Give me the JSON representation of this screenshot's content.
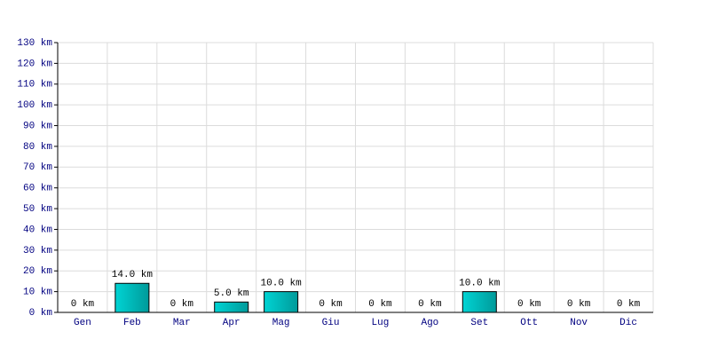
{
  "chart_data": {
    "type": "bar",
    "categories": [
      "Gen",
      "Feb",
      "Mar",
      "Apr",
      "Mag",
      "Giu",
      "Lug",
      "Ago",
      "Set",
      "Ott",
      "Nov",
      "Dic"
    ],
    "values": [
      0,
      14,
      0,
      5,
      10,
      0,
      0,
      0,
      10,
      0,
      0,
      0
    ],
    "value_labels": [
      "0 km",
      "14.0 km",
      "0 km",
      "5.0 km",
      "10.0 km",
      "0 km",
      "0 km",
      "0 km",
      "10.0 km",
      "0 km",
      "0 km",
      "0 km"
    ],
    "color": "#00d4d4",
    "ylim": [
      0,
      130
    ],
    "yticks": [
      {
        "value": 0,
        "label": "0 km"
      },
      {
        "value": 10,
        "label": "10 km"
      },
      {
        "value": 20,
        "label": "20 km"
      },
      {
        "value": 30,
        "label": "30 km"
      },
      {
        "value": 40,
        "label": "40 km"
      },
      {
        "value": 50,
        "label": "50 km"
      },
      {
        "value": 60,
        "label": "60 km"
      },
      {
        "value": 70,
        "label": "70 km"
      },
      {
        "value": 80,
        "label": "80 km"
      },
      {
        "value": 90,
        "label": "90 km"
      },
      {
        "value": 100,
        "label": "100 km"
      },
      {
        "value": 110,
        "label": "110 km"
      },
      {
        "value": 120,
        "label": "120 km"
      },
      {
        "value": 130,
        "label": "130 km"
      }
    ],
    "grid": true
  }
}
